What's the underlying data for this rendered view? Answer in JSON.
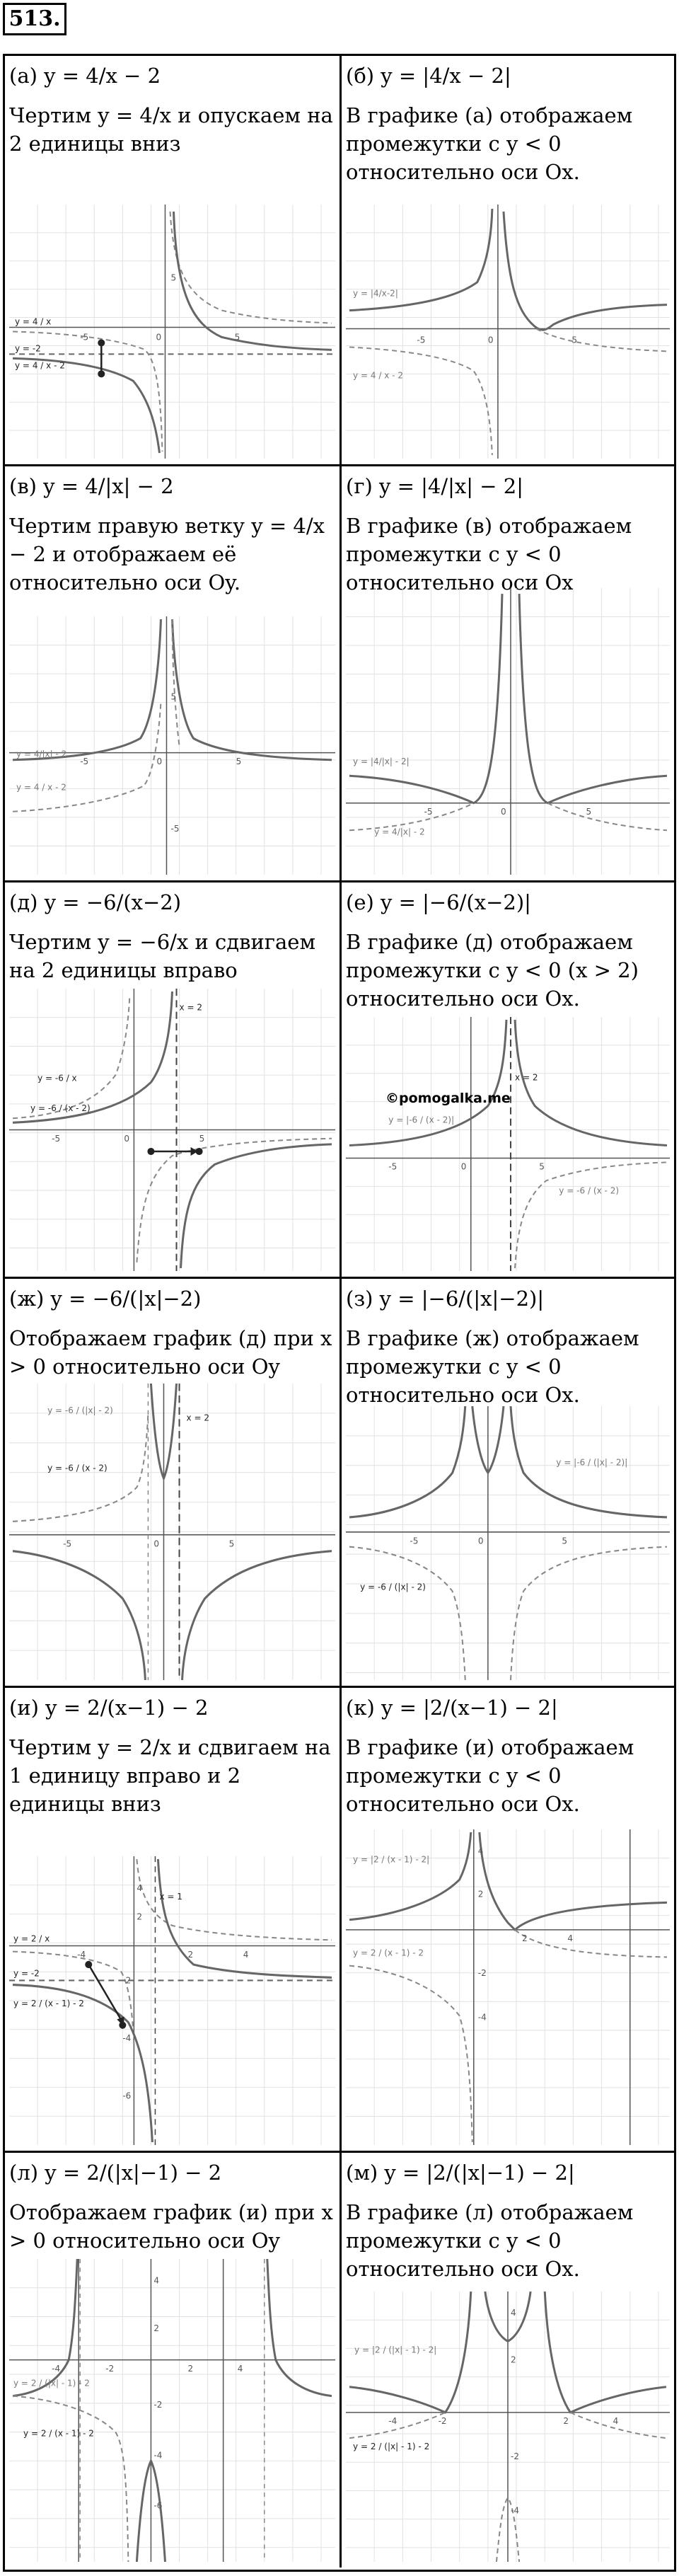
{
  "problem_number": "513.",
  "watermark": "©pomogalka.me",
  "cells": [
    {
      "heading": "(а) y = 4/x − 2",
      "caption": "Чертим y = 4/x и опускаем на 2 единицы вниз",
      "labels": [
        "y = 4 / x",
        "y = -2",
        "y = 4 / x - 2"
      ]
    },
    {
      "heading": "(б) y = |4/x − 2|",
      "caption": "В графике (а) отображаем промежутки с y < 0 относительно оси Ox.",
      "labels": [
        "y = |4/x-2|",
        "y = 4 / x - 2"
      ]
    },
    {
      "heading": "(в) y = 4/|x| − 2",
      "caption": "Чертим правую ветку y = 4/x − 2 и отображаем её относительно оси Oy.",
      "labels": [
        "y = 4/|x| - 2",
        "y = 4 / x - 2"
      ]
    },
    {
      "heading": "(г) y = |4/|x| − 2|",
      "caption": "В графике (в) отображаем промежутки с y < 0 относительно оси Ox",
      "labels": [
        "y = |4/|x| - 2|",
        "y = 4/|x| - 2"
      ]
    },
    {
      "heading": "(д) y = −6/(x−2)",
      "caption": "Чертим y = −6/x и сдвигаем на 2 единицы вправо",
      "labels": [
        "x = 2",
        "y = -6 / x",
        "y = -6 / (x - 2)"
      ]
    },
    {
      "heading": "(е) y = |−6/(x−2)|",
      "caption": "В графике (д) отображаем промежутки с y < 0 (x > 2) относительно оси Ox.",
      "labels": [
        "x = 2",
        "y = |-6 / (x - 2)|",
        "y = -6 / (x - 2)"
      ]
    },
    {
      "heading": "(ж) y = −6/(|x|−2)",
      "caption": "Отображаем график (д) при x > 0 относительно оси Oy",
      "labels": [
        "y = -6 / (|x| - 2)",
        "x = 2",
        "y = -6 / (x - 2)"
      ]
    },
    {
      "heading": "(з) y = |−6/(|x|−2)|",
      "caption": "В графике (ж) отображаем промежутки с y < 0 относительно оси Ox.",
      "labels": [
        "y = |-6 / (|x| - 2)|",
        "y = -6 / (|x| - 2)"
      ]
    },
    {
      "heading": "(и) y = 2/(x−1) − 2",
      "caption": "Чертим y = 2/x и сдвигаем на 1 единицу вправо и 2 единицы вниз",
      "labels": [
        "y = 2 / x",
        "x = 1",
        "y = -2",
        "y = 2 / (x - 1) - 2"
      ]
    },
    {
      "heading": "(к) y = |2/(x−1) − 2|",
      "caption": "В графике (и) отображаем промежутки с y < 0 относительно оси Ox.",
      "labels": [
        "y = |2 / (x - 1) - 2|",
        "y = 2 / (x - 1) - 2"
      ]
    },
    {
      "heading": "(л) y = 2/(|x|−1) − 2",
      "caption": "Отображаем график (и) при x > 0 относительно оси Oy",
      "labels": [
        "y = 2 / (|x| - 1) - 2",
        "y = 2 / (x - 1) - 2"
      ]
    },
    {
      "heading": "(м) y = |2/(|x|−1) − 2|",
      "caption": "В графике (л) отображаем промежутки с y < 0 относительно оси Ox.",
      "labels": [
        "y = |2 / (|x| - 1) - 2|",
        "y = 2 / (|x| - 1) - 2"
      ]
    }
  ],
  "plot_ticks": {
    "a": [
      "5",
      "-5",
      "0",
      "5"
    ],
    "b": [
      "-5",
      "0",
      "5"
    ],
    "v": [
      "-5",
      "0",
      "5",
      "5",
      "-5"
    ],
    "g": [
      "-5",
      "0",
      "5"
    ],
    "d": [
      "-5",
      "0",
      "5"
    ],
    "e": [
      "-5",
      "0",
      "5"
    ],
    "zh": [
      "-5",
      "0",
      "5"
    ],
    "z": [
      "-5",
      "0",
      "5"
    ],
    "i": [
      "4",
      "2",
      "-2",
      "-4",
      "2",
      "4",
      "-4",
      "-6"
    ],
    "k": [
      "4",
      "2",
      "-2",
      "-4",
      "2",
      "4"
    ],
    "l": [
      "4",
      "2",
      "-2",
      "-4",
      "-2",
      "2",
      "4",
      "-4",
      "-6"
    ],
    "m": [
      "4",
      "2",
      "-2",
      "-4",
      "-2",
      "2",
      "4",
      "-4"
    ]
  }
}
